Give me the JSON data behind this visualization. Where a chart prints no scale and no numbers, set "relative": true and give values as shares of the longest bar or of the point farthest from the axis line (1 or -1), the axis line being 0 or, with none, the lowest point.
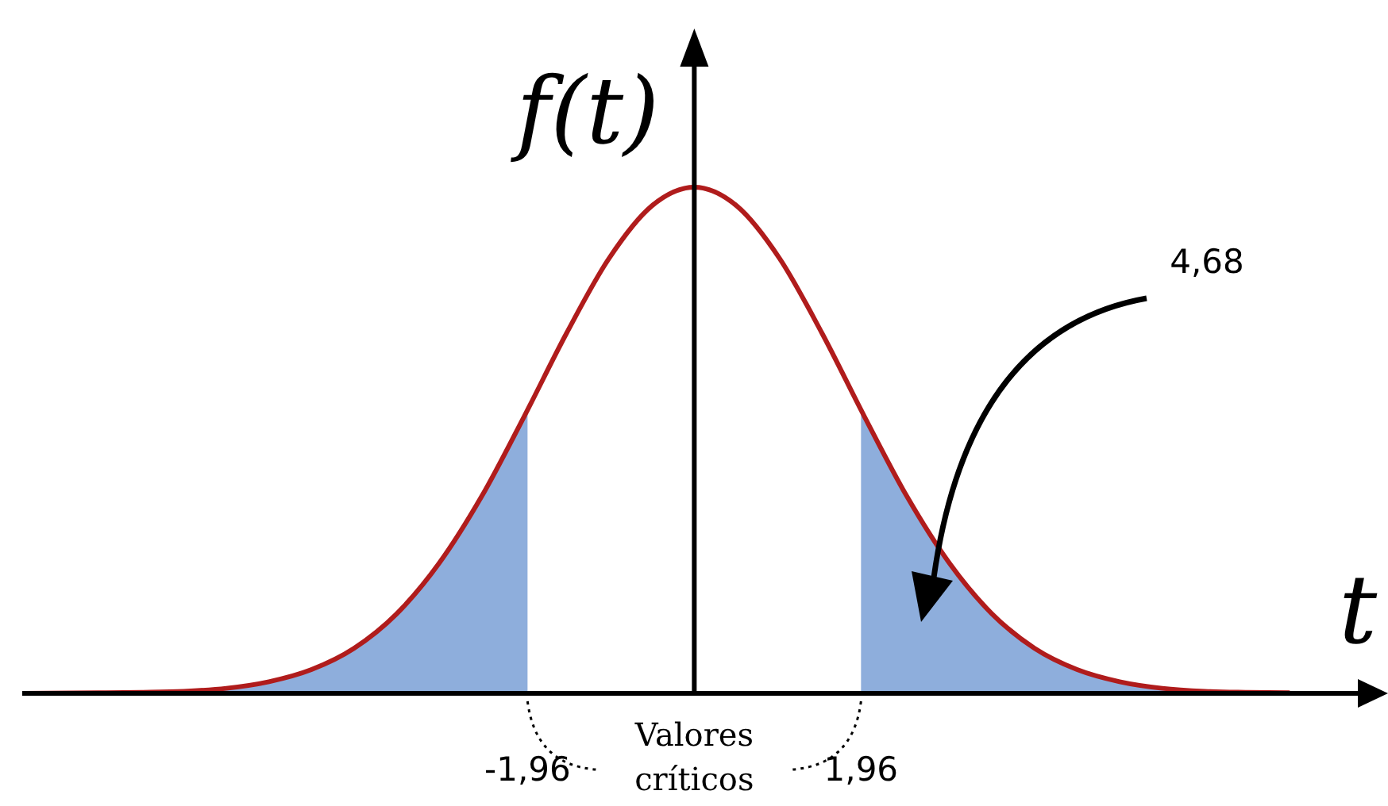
{
  "chart_data": {
    "type": "line",
    "relative": true,
    "xlabel": "t",
    "ylabel": "f(t)",
    "xlim": [
      -7.9,
      7.8
    ],
    "xticks": [
      {
        "value": -1.96,
        "label": "-1,96"
      },
      {
        "value": 1.96,
        "label": "1,96"
      }
    ],
    "marker": "none",
    "series": [
      {
        "type": "area",
        "color": "#8eaedc",
        "x": [
          -6,
          -5.5,
          -5,
          -4.5,
          -4,
          -3.5,
          -3,
          -2.5,
          -1.96
        ],
        "values": [
          0.004,
          0.01,
          0.023,
          0.047,
          0.089,
          0.157,
          0.257,
          0.389,
          0.56
        ]
      },
      {
        "type": "area",
        "color": "#8eaedc",
        "x": [
          1.96,
          2.5,
          3,
          3.5,
          4,
          4.5,
          5,
          5.5,
          6
        ],
        "values": [
          0.56,
          0.389,
          0.257,
          0.157,
          0.089,
          0.047,
          0.023,
          0.01,
          0.004
        ]
      },
      {
        "color": "#b01c1c",
        "x": [
          -7.9,
          -7,
          -6.5,
          -6,
          -5.5,
          -5,
          -4.5,
          -4,
          -3.5,
          -3,
          -2.5,
          -2,
          -1.5,
          -1,
          -0.5,
          0,
          0.5,
          1,
          1.5,
          2,
          2.5,
          3,
          3.5,
          4,
          4.5,
          5,
          5.5,
          6,
          6.5,
          7
        ],
        "values": [
          0,
          0.001,
          0.002,
          0.004,
          0.01,
          0.023,
          0.047,
          0.089,
          0.157,
          0.257,
          0.389,
          0.547,
          0.712,
          0.86,
          0.963,
          1,
          0.963,
          0.86,
          0.712,
          0.547,
          0.389,
          0.257,
          0.157,
          0.089,
          0.047,
          0.023,
          0.01,
          0.004,
          0.002,
          0.001
        ]
      }
    ],
    "annotations": [
      "4,68",
      "Valores críticos"
    ]
  }
}
